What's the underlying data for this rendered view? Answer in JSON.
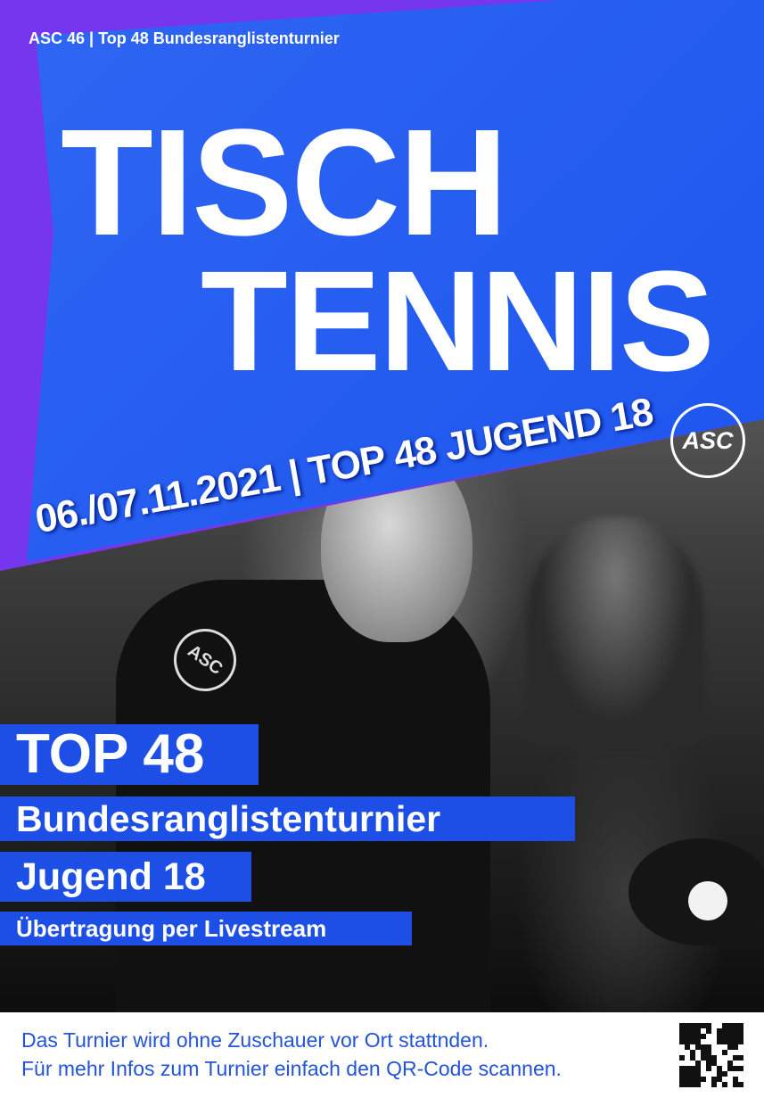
{
  "header": {
    "topline": "ASC 46 | Top 48 Bundesranglistenturnier",
    "title_line1": "TISCH",
    "title_line2": "TENNIS",
    "dateline": "06./07.11.2021 | TOP 48 JUGEND 18",
    "logo_text": "ASC"
  },
  "photo": {
    "shirt_logo_text": "ASC"
  },
  "bands": {
    "line1": "TOP 48",
    "line2": "Bundesranglistenturnier",
    "line3": "Jugend 18",
    "line4": "Übertragung per Livestream"
  },
  "footer": {
    "line1": "Das Turnier wird ohne Zuschauer vor Ort stattnden.",
    "line2": "Für mehr Infos zum Turnier einfach den QR-Code scannen.",
    "qr_icon": "qr-code-icon"
  },
  "colors": {
    "purple": "#7636ee",
    "blue": "#1d55ee",
    "band_blue": "#1d4fe6",
    "footer_text": "#2454d6"
  }
}
